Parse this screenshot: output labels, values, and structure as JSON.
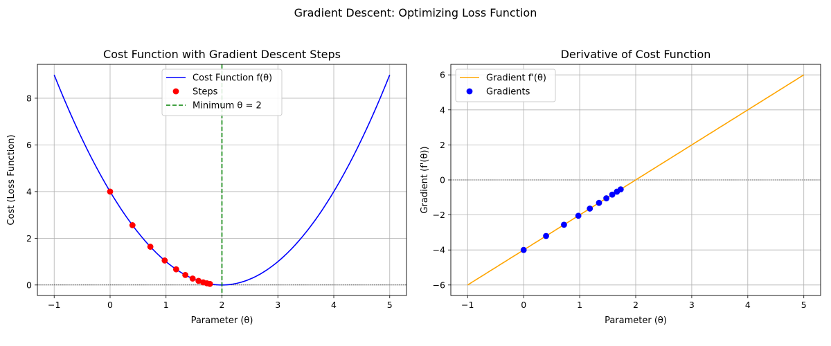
{
  "figure": {
    "suptitle": "Gradient Descent: Optimizing Loss Function"
  },
  "chart_data": [
    {
      "type": "line",
      "title": "Cost Function with Gradient Descent Steps",
      "xlabel": "Parameter (θ)",
      "ylabel": "Cost (Loss Function)",
      "xlim": [
        -1.3,
        5.3
      ],
      "ylim": [
        -0.45,
        9.45
      ],
      "xticks": [
        -1,
        0,
        1,
        2,
        3,
        4,
        5
      ],
      "yticks": [
        0,
        2,
        4,
        6,
        8
      ],
      "grid": true,
      "legend_position": "upper-center",
      "hline": {
        "y": 0,
        "style": "dotted-black"
      },
      "series": [
        {
          "name": "Cost Function f(θ)",
          "kind": "line",
          "color": "#0000ff",
          "function": "(x-2)^2",
          "x_range": [
            -1,
            5
          ]
        },
        {
          "name": "Steps",
          "kind": "scatter",
          "color": "#ff0000",
          "x": [
            0,
            0.4,
            0.72,
            0.976,
            1.181,
            1.345,
            1.476,
            1.581,
            1.665,
            1.732,
            1.785
          ],
          "y": [
            4,
            2.56,
            1.638,
            1.049,
            0.671,
            0.429,
            0.275,
            0.176,
            0.113,
            0.072,
            0.046
          ]
        },
        {
          "name": "Minimum θ = 2",
          "kind": "vline",
          "color": "#008000",
          "x": 2,
          "style": "dashed"
        }
      ]
    },
    {
      "type": "line",
      "title": "Derivative of Cost Function",
      "xlabel": "Parameter (θ)",
      "ylabel": "Gradient (f'(θ))",
      "xlim": [
        -1.3,
        5.3
      ],
      "ylim": [
        -6.6,
        6.6
      ],
      "xticks": [
        -1,
        0,
        1,
        2,
        3,
        4,
        5
      ],
      "yticks": [
        -6,
        -4,
        -2,
        0,
        2,
        4,
        6
      ],
      "grid": true,
      "legend_position": "upper-left",
      "hline": {
        "y": 0,
        "style": "dotted-black"
      },
      "series": [
        {
          "name": "Gradient f'(θ)",
          "kind": "line",
          "color": "#ffa500",
          "function": "2(x-2)",
          "x_range": [
            -1,
            5
          ]
        },
        {
          "name": "Gradients",
          "kind": "scatter",
          "color": "#0000ff",
          "x": [
            0,
            0.4,
            0.72,
            0.976,
            1.181,
            1.345,
            1.476,
            1.581,
            1.665,
            1.732
          ],
          "y": [
            -4,
            -3.2,
            -2.56,
            -2.048,
            -1.638,
            -1.311,
            -1.049,
            -0.839,
            -0.671,
            -0.537
          ]
        }
      ]
    }
  ]
}
